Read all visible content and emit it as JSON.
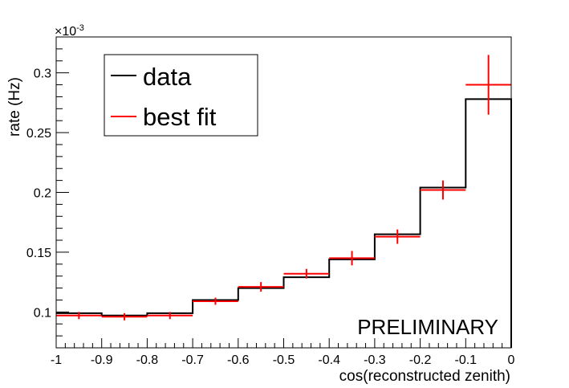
{
  "chart_data": {
    "type": "histogram",
    "xlabel": "cos(reconstructed zenith)",
    "ylabel": "rate (Hz)",
    "y_exponent_label": "×10",
    "y_exponent_power": "-3",
    "annotation": "PRELIMINARY",
    "xlim": [
      -1,
      0
    ],
    "ylim": [
      0.07,
      0.33
    ],
    "x_ticks": [
      -1,
      -0.9,
      -0.8,
      -0.7,
      -0.6,
      -0.5,
      -0.4,
      -0.3,
      -0.2,
      -0.1,
      0
    ],
    "x_tick_labels": [
      "-1",
      "-0.9",
      "-0.8",
      "-0.7",
      "-0.6",
      "-0.5",
      "-0.4",
      "-0.3",
      "-0.2",
      "-0.1",
      "0"
    ],
    "y_ticks": [
      0.1,
      0.15,
      0.2,
      0.25,
      0.3
    ],
    "y_tick_labels": [
      "0.1",
      "0.15",
      "0.2",
      "0.25",
      "0.3"
    ],
    "bin_edges": [
      -1,
      -0.9,
      -0.8,
      -0.7,
      -0.6,
      -0.5,
      -0.4,
      -0.3,
      -0.2,
      -0.1,
      0
    ],
    "legend": {
      "position": "top-left",
      "entries": [
        "data",
        "best fit"
      ]
    },
    "series": [
      {
        "name": "data",
        "style": "step",
        "color": "#000000",
        "values": [
          0.099,
          0.097,
          0.099,
          0.11,
          0.12,
          0.129,
          0.144,
          0.165,
          0.204,
          0.278
        ]
      },
      {
        "name": "best fit",
        "style": "errorbar",
        "color": "#ff0000",
        "values": [
          0.097,
          0.096,
          0.097,
          0.109,
          0.121,
          0.132,
          0.145,
          0.163,
          0.202,
          0.29
        ],
        "errors": [
          0.003,
          0.003,
          0.003,
          0.003,
          0.004,
          0.004,
          0.006,
          0.006,
          0.008,
          0.025
        ]
      }
    ]
  }
}
